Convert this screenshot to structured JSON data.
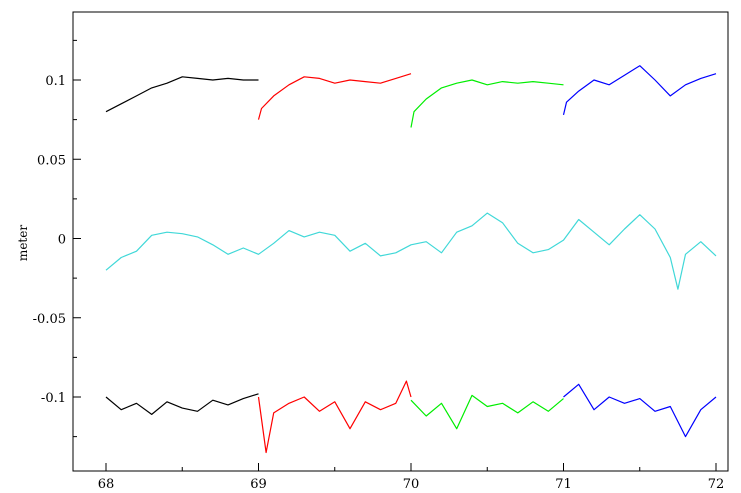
{
  "chart_data": {
    "type": "line",
    "title": "",
    "xlabel": "",
    "ylabel": "meter",
    "xlim": [
      68,
      72
    ],
    "ylim": [
      -0.145,
      0.145
    ],
    "xticks": [
      {
        "value": 68,
        "label": "68"
      },
      {
        "value": 69,
        "label": "69"
      },
      {
        "value": 70,
        "label": "70"
      },
      {
        "value": 71,
        "label": "71"
      },
      {
        "value": 72,
        "label": "72"
      }
    ],
    "yticks": [
      {
        "value": 0.1,
        "label": "0.1"
      },
      {
        "value": 0.05,
        "label": "0.05"
      },
      {
        "value": 0,
        "label": "0"
      },
      {
        "value": -0.05,
        "label": "-0.05"
      },
      {
        "value": -0.1,
        "label": "-0.1"
      }
    ],
    "grid": false,
    "legend": "none",
    "series": [
      {
        "color": "#000000",
        "x": [
          68.0,
          68.1,
          68.2,
          68.3,
          68.4,
          68.5,
          68.6,
          68.7,
          68.8,
          68.9,
          69.0
        ],
        "y": [
          0.08,
          0.085,
          0.09,
          0.095,
          0.098,
          0.102,
          0.101,
          0.1,
          0.101,
          0.1,
          0.1
        ]
      },
      {
        "color": "#ff0000",
        "x": [
          69.0,
          69.02,
          69.1,
          69.2,
          69.3,
          69.4,
          69.5,
          69.6,
          69.7,
          69.8,
          69.9,
          70.0
        ],
        "y": [
          0.075,
          0.082,
          0.09,
          0.097,
          0.102,
          0.101,
          0.098,
          0.1,
          0.099,
          0.098,
          0.101,
          0.104
        ]
      },
      {
        "color": "#00ee00",
        "x": [
          70.0,
          70.02,
          70.1,
          70.2,
          70.3,
          70.4,
          70.5,
          70.6,
          70.7,
          70.8,
          70.9,
          71.0
        ],
        "y": [
          0.07,
          0.08,
          0.088,
          0.095,
          0.098,
          0.1,
          0.097,
          0.099,
          0.098,
          0.099,
          0.098,
          0.097
        ]
      },
      {
        "color": "#0000ff",
        "x": [
          71.0,
          71.02,
          71.1,
          71.2,
          71.3,
          71.4,
          71.5,
          71.6,
          71.7,
          71.8,
          71.9,
          72.0
        ],
        "y": [
          0.078,
          0.086,
          0.093,
          0.1,
          0.097,
          0.103,
          0.109,
          0.1,
          0.09,
          0.097,
          0.101,
          0.104
        ]
      },
      {
        "color": "#40d8d8",
        "x": [
          68.0,
          68.1,
          68.2,
          68.3,
          68.4,
          68.5,
          68.6,
          68.7,
          68.8,
          68.9,
          69.0,
          69.1,
          69.2,
          69.3,
          69.4,
          69.5,
          69.6,
          69.7,
          69.8,
          69.9,
          70.0,
          70.1,
          70.2,
          70.3,
          70.4,
          70.5,
          70.6,
          70.7,
          70.8,
          70.9,
          71.0,
          71.1,
          71.2,
          71.3,
          71.4,
          71.5,
          71.6,
          71.7,
          71.75,
          71.8,
          71.9,
          72.0
        ],
        "y": [
          -0.02,
          -0.012,
          -0.008,
          0.002,
          0.004,
          0.003,
          0.001,
          -0.004,
          -0.01,
          -0.006,
          -0.01,
          -0.003,
          0.005,
          0.001,
          0.004,
          0.002,
          -0.008,
          -0.003,
          -0.011,
          -0.009,
          -0.004,
          -0.002,
          -0.009,
          0.004,
          0.008,
          0.016,
          0.01,
          -0.003,
          -0.009,
          -0.007,
          -0.001,
          0.012,
          0.004,
          -0.004,
          0.006,
          0.015,
          0.006,
          -0.012,
          -0.032,
          -0.01,
          -0.002,
          -0.011
        ]
      },
      {
        "color": "#000000",
        "x": [
          68.0,
          68.1,
          68.2,
          68.3,
          68.4,
          68.5,
          68.6,
          68.7,
          68.8,
          68.9,
          69.0
        ],
        "y": [
          -0.1,
          -0.108,
          -0.104,
          -0.111,
          -0.103,
          -0.107,
          -0.109,
          -0.102,
          -0.105,
          -0.101,
          -0.098
        ]
      },
      {
        "color": "#ff0000",
        "x": [
          69.0,
          69.05,
          69.1,
          69.2,
          69.3,
          69.4,
          69.5,
          69.6,
          69.7,
          69.8,
          69.9,
          69.97,
          70.0
        ],
        "y": [
          -0.1,
          -0.135,
          -0.11,
          -0.104,
          -0.1,
          -0.109,
          -0.103,
          -0.12,
          -0.103,
          -0.108,
          -0.104,
          -0.09,
          -0.1
        ]
      },
      {
        "color": "#00ee00",
        "x": [
          70.0,
          70.1,
          70.2,
          70.3,
          70.4,
          70.5,
          70.6,
          70.7,
          70.8,
          70.9,
          71.0
        ],
        "y": [
          -0.102,
          -0.112,
          -0.104,
          -0.12,
          -0.099,
          -0.106,
          -0.104,
          -0.11,
          -0.103,
          -0.109,
          -0.101
        ]
      },
      {
        "color": "#0000ff",
        "x": [
          71.0,
          71.1,
          71.2,
          71.3,
          71.4,
          71.5,
          71.6,
          71.7,
          71.8,
          71.9,
          72.0
        ],
        "y": [
          -0.1,
          -0.092,
          -0.108,
          -0.1,
          -0.104,
          -0.101,
          -0.109,
          -0.106,
          -0.125,
          -0.108,
          -0.1
        ]
      }
    ]
  }
}
